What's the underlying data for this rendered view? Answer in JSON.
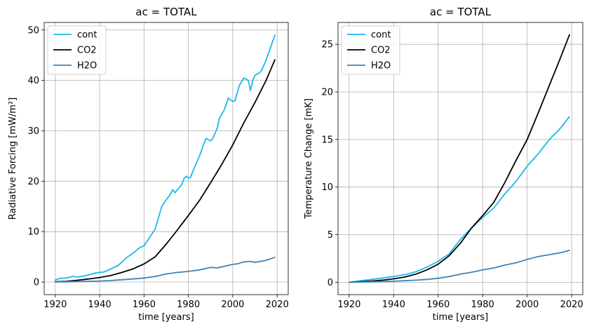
{
  "chart_data": [
    {
      "type": "line",
      "title": "ac = TOTAL",
      "xlabel": "time [years]",
      "ylabel": "Radiative Forcing [mW/m²]",
      "xlim": [
        1915,
        2025
      ],
      "ylim": [
        -2.5,
        51.5
      ],
      "xticks": [
        1920,
        1940,
        1960,
        1980,
        2000,
        2020
      ],
      "yticks": [
        0,
        10,
        20,
        30,
        40,
        50
      ],
      "grid": true,
      "legend": "upper-left",
      "series": [
        {
          "name": "cont",
          "color": "#1ab8ee",
          "x": [
            1920,
            1922,
            1925,
            1928,
            1930,
            1933,
            1935,
            1938,
            1940,
            1942,
            1945,
            1948,
            1950,
            1952,
            1955,
            1958,
            1960,
            1962,
            1965,
            1967,
            1968,
            1970,
            1972,
            1973,
            1974,
            1975,
            1977,
            1978,
            1979,
            1980,
            1981,
            1982,
            1984,
            1985,
            1987,
            1988,
            1990,
            1991,
            1993,
            1994,
            1996,
            1998,
            2000,
            2001,
            2003,
            2004,
            2005,
            2007,
            2008,
            2009,
            2010,
            2012,
            2013,
            2015,
            2017,
            2019
          ],
          "y": [
            0.4,
            0.7,
            0.8,
            1.1,
            1.0,
            1.2,
            1.4,
            1.8,
            1.9,
            2.0,
            2.6,
            3.2,
            3.9,
            4.8,
            5.7,
            6.8,
            7.2,
            8.5,
            10.5,
            13.5,
            15.0,
            16.3,
            17.5,
            18.3,
            17.7,
            18.3,
            19.3,
            20.5,
            21.0,
            20.6,
            20.8,
            22.0,
            24.0,
            25.0,
            27.5,
            28.5,
            28.0,
            28.5,
            30.5,
            32.5,
            34.0,
            36.5,
            35.8,
            36.0,
            39.0,
            39.8,
            40.5,
            40.0,
            38.0,
            40.0,
            41.0,
            41.5,
            42.0,
            44.0,
            46.5,
            49.0
          ]
        },
        {
          "name": "CO2",
          "color": "#000000",
          "x": [
            1920,
            1925,
            1930,
            1935,
            1940,
            1945,
            1950,
            1955,
            1960,
            1965,
            1970,
            1975,
            1980,
            1985,
            1990,
            1995,
            2000,
            2005,
            2010,
            2015,
            2019
          ],
          "y": [
            0.05,
            0.15,
            0.35,
            0.6,
            0.9,
            1.3,
            1.9,
            2.6,
            3.6,
            5.0,
            7.5,
            10.3,
            13.2,
            16.2,
            19.7,
            23.3,
            27.2,
            31.6,
            35.6,
            40.0,
            44.1
          ]
        },
        {
          "name": "H2O",
          "color": "#3c84bb",
          "x": [
            1920,
            1925,
            1930,
            1935,
            1940,
            1945,
            1950,
            1955,
            1960,
            1965,
            1968,
            1970,
            1975,
            1980,
            1985,
            1990,
            1993,
            1995,
            2000,
            2002,
            2005,
            2008,
            2010,
            2015,
            2019
          ],
          "y": [
            0.0,
            0.05,
            0.1,
            0.15,
            0.2,
            0.3,
            0.45,
            0.6,
            0.8,
            1.1,
            1.4,
            1.6,
            1.9,
            2.1,
            2.4,
            2.9,
            2.8,
            3.0,
            3.5,
            3.6,
            4.0,
            4.1,
            3.9,
            4.3,
            4.9
          ]
        }
      ]
    },
    {
      "type": "line",
      "title": "ac = TOTAL",
      "xlabel": "time [years]",
      "ylabel": "Temperature Change [mK]",
      "xlim": [
        1915,
        2025
      ],
      "ylim": [
        -1.3,
        27.3
      ],
      "xticks": [
        1920,
        1940,
        1960,
        1980,
        2000,
        2020
      ],
      "yticks": [
        0,
        5,
        10,
        15,
        20,
        25
      ],
      "grid": true,
      "legend": "upper-left",
      "series": [
        {
          "name": "cont",
          "color": "#1ab8ee",
          "x": [
            1920,
            1925,
            1930,
            1935,
            1940,
            1945,
            1950,
            1955,
            1960,
            1965,
            1970,
            1975,
            1980,
            1985,
            1990,
            1995,
            2000,
            2005,
            2010,
            2015,
            2019
          ],
          "y": [
            0.0,
            0.15,
            0.3,
            0.45,
            0.6,
            0.8,
            1.1,
            1.6,
            2.2,
            3.0,
            4.5,
            5.7,
            6.8,
            7.8,
            9.3,
            10.6,
            12.2,
            13.5,
            15.0,
            16.2,
            17.4
          ]
        },
        {
          "name": "CO2",
          "color": "#000000",
          "x": [
            1920,
            1925,
            1930,
            1935,
            1940,
            1945,
            1950,
            1955,
            1960,
            1965,
            1970,
            1975,
            1980,
            1985,
            1990,
            1995,
            2000,
            2005,
            2010,
            2015,
            2019
          ],
          "y": [
            0.0,
            0.05,
            0.12,
            0.22,
            0.36,
            0.55,
            0.85,
            1.3,
            1.9,
            2.8,
            4.1,
            5.7,
            7.0,
            8.4,
            10.5,
            12.8,
            15.0,
            17.8,
            20.7,
            23.6,
            26.0
          ]
        },
        {
          "name": "H2O",
          "color": "#3c84bb",
          "x": [
            1920,
            1925,
            1930,
            1935,
            1940,
            1945,
            1950,
            1955,
            1960,
            1965,
            1970,
            1975,
            1980,
            1985,
            1990,
            1995,
            2000,
            2005,
            2010,
            2015,
            2019
          ],
          "y": [
            0.0,
            0.02,
            0.05,
            0.08,
            0.11,
            0.16,
            0.22,
            0.3,
            0.42,
            0.6,
            0.85,
            1.05,
            1.3,
            1.5,
            1.8,
            2.05,
            2.4,
            2.7,
            2.9,
            3.1,
            3.35
          ]
        }
      ]
    }
  ]
}
